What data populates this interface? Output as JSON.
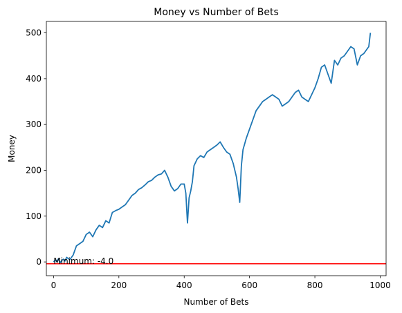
{
  "chart_data": {
    "type": "line",
    "title": "Money vs Number of Bets",
    "xlabel": "Number of Bets",
    "ylabel": "Money",
    "xlim": [
      -22,
      1018
    ],
    "ylim": [
      -30,
      525
    ],
    "xticks": [
      0,
      200,
      400,
      600,
      800,
      1000
    ],
    "yticks": [
      0,
      100,
      200,
      300,
      400,
      500
    ],
    "grid": false,
    "legend": "none",
    "line_color": "#1f77b4",
    "hline": {
      "y": -4.0,
      "color": "#ff0000"
    },
    "annotation": {
      "text": "Minimum: -4.0",
      "x": 0,
      "y": -4.0
    },
    "series": [
      {
        "x": [
          0,
          5,
          10,
          15,
          20,
          25,
          30,
          35,
          40,
          50,
          60,
          70,
          80,
          90,
          100,
          110,
          120,
          130,
          140,
          150,
          160,
          170,
          180,
          190,
          200,
          210,
          220,
          230,
          240,
          250,
          260,
          270,
          280,
          290,
          300,
          310,
          320,
          330,
          340,
          350,
          360,
          370,
          380,
          390,
          400,
          405,
          410,
          415,
          420,
          425,
          430,
          440,
          450,
          460,
          470,
          480,
          490,
          500,
          510,
          520,
          530,
          540,
          550,
          560,
          565,
          570,
          575,
          580,
          590,
          600,
          610,
          620,
          630,
          640,
          650,
          660,
          670,
          680,
          690,
          700,
          710,
          720,
          730,
          740,
          750,
          760,
          770,
          780,
          790,
          800,
          810,
          820,
          830,
          840,
          850,
          860,
          870,
          880,
          890,
          900,
          910,
          920,
          930,
          940,
          950,
          960,
          965,
          970
        ],
        "y": [
          0,
          4,
          1,
          7,
          -2,
          3,
          6,
          2,
          10,
          5,
          15,
          35,
          40,
          45,
          60,
          65,
          55,
          70,
          80,
          75,
          90,
          85,
          108,
          112,
          115,
          120,
          125,
          135,
          145,
          150,
          158,
          162,
          168,
          175,
          178,
          185,
          190,
          192,
          200,
          185,
          165,
          155,
          160,
          170,
          170,
          150,
          85,
          140,
          155,
          175,
          210,
          225,
          232,
          228,
          240,
          245,
          250,
          255,
          262,
          250,
          240,
          235,
          215,
          185,
          160,
          130,
          210,
          245,
          270,
          290,
          310,
          330,
          340,
          350,
          355,
          360,
          365,
          360,
          355,
          340,
          345,
          350,
          360,
          370,
          375,
          360,
          355,
          350,
          365,
          380,
          400,
          425,
          430,
          410,
          390,
          440,
          430,
          445,
          450,
          460,
          470,
          465,
          430,
          450,
          455,
          465,
          470,
          500
        ]
      }
    ]
  }
}
